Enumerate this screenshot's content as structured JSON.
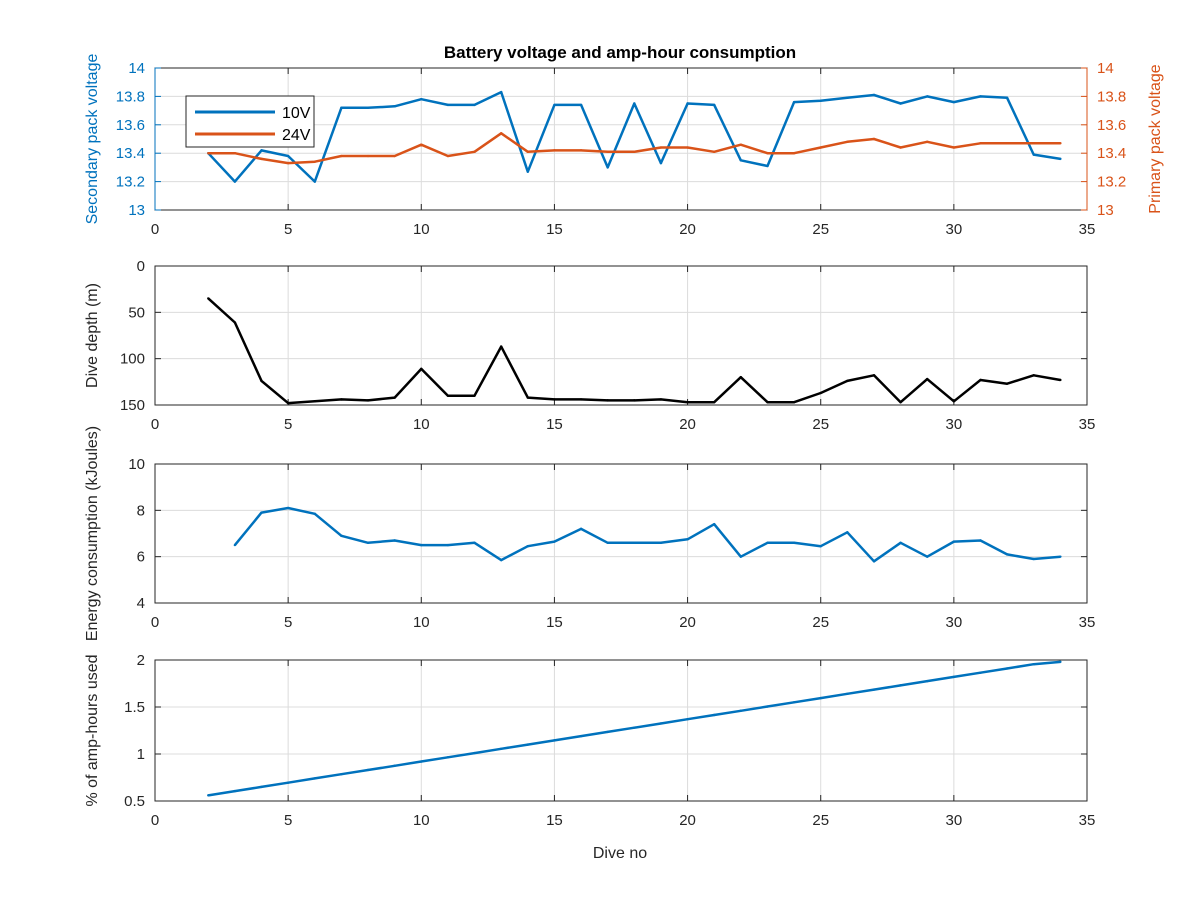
{
  "figure": {
    "title": "Battery voltage and amp-hour consumption",
    "xlabel": "Dive no"
  },
  "colors": {
    "blue": "#0072BD",
    "orange": "#D95319",
    "black": "#000000",
    "grid": "#dcdcdc",
    "axis": "#262626"
  },
  "chart_data": [
    {
      "type": "line",
      "id": "voltage",
      "title": "Battery voltage and amp-hour consumption",
      "xlabel": "",
      "ylabel": "Secondary pack voltage",
      "ylabel_right": "Primary pack voltage",
      "xlim": [
        0,
        35
      ],
      "ylim": [
        13,
        14
      ],
      "ylim_right": [
        13,
        14
      ],
      "xticks": [
        0,
        5,
        10,
        15,
        20,
        25,
        30,
        35
      ],
      "yticks": [
        13,
        13.2,
        13.4,
        13.6,
        13.8,
        14
      ],
      "ytick_labels": [
        "13",
        "13.2",
        "13.4",
        "13.6",
        "13.8",
        "14"
      ],
      "yticks_right": [
        13,
        13.2,
        13.4,
        13.6,
        13.8,
        14
      ],
      "ytick_labels_right": [
        "13",
        "13.2",
        "13.4",
        "13.6",
        "13.8",
        "14"
      ],
      "grid": true,
      "legend": "top-left",
      "x": [
        2,
        3,
        4,
        5,
        6,
        7,
        8,
        9,
        10,
        11,
        12,
        13,
        14,
        15,
        16,
        17,
        18,
        19,
        20,
        21,
        22,
        23,
        24,
        25,
        26,
        27,
        28,
        29,
        30,
        31,
        32,
        33,
        34
      ],
      "series": [
        {
          "name": "10V",
          "axis": "left",
          "color": "#0072BD",
          "values": [
            13.4,
            13.2,
            13.42,
            13.38,
            13.2,
            13.72,
            13.72,
            13.73,
            13.78,
            13.74,
            13.74,
            13.83,
            13.27,
            13.74,
            13.74,
            13.3,
            13.75,
            13.33,
            13.75,
            13.74,
            13.35,
            13.31,
            13.76,
            13.77,
            13.79,
            13.81,
            13.75,
            13.8,
            13.76,
            13.8,
            13.79,
            13.39,
            13.36
          ]
        },
        {
          "name": "24V",
          "axis": "right",
          "color": "#D95319",
          "values": [
            13.4,
            13.4,
            13.36,
            13.33,
            13.34,
            13.38,
            13.38,
            13.38,
            13.46,
            13.38,
            13.41,
            13.54,
            13.41,
            13.42,
            13.42,
            13.41,
            13.41,
            13.44,
            13.44,
            13.41,
            13.46,
            13.4,
            13.4,
            13.44,
            13.48,
            13.5,
            13.44,
            13.48,
            13.44,
            13.47,
            13.47,
            13.47,
            13.47
          ]
        }
      ]
    },
    {
      "type": "line",
      "id": "depth",
      "title": "",
      "xlabel": "",
      "ylabel": "Dive depth (m)",
      "xlim": [
        0,
        35
      ],
      "ylim": [
        0,
        150
      ],
      "y_reversed": true,
      "xticks": [
        0,
        5,
        10,
        15,
        20,
        25,
        30,
        35
      ],
      "yticks": [
        0,
        50,
        100,
        150
      ],
      "ytick_labels": [
        "0",
        "50",
        "100",
        "150"
      ],
      "grid": true,
      "x": [
        2,
        3,
        4,
        5,
        6,
        7,
        8,
        9,
        10,
        11,
        12,
        13,
        14,
        15,
        16,
        17,
        18,
        19,
        20,
        21,
        22,
        23,
        24,
        25,
        26,
        27,
        28,
        29,
        30,
        31,
        32,
        33,
        34
      ],
      "series": [
        {
          "color": "#000000",
          "values": [
            35,
            61,
            124,
            148,
            146,
            144,
            145,
            142,
            111,
            140,
            140,
            87,
            142,
            144,
            144,
            145,
            145,
            144,
            147,
            147,
            120,
            147,
            147,
            137,
            124,
            118,
            147,
            122,
            146,
            123,
            127,
            118,
            123
          ]
        }
      ]
    },
    {
      "type": "line",
      "id": "energy",
      "title": "",
      "xlabel": "",
      "ylabel": "Energy consumption (kJoules)",
      "xlim": [
        0,
        35
      ],
      "ylim": [
        4,
        10
      ],
      "xticks": [
        0,
        5,
        10,
        15,
        20,
        25,
        30,
        35
      ],
      "yticks": [
        4,
        6,
        8,
        10
      ],
      "ytick_labels": [
        "4",
        "6",
        "8",
        "10"
      ],
      "grid": true,
      "x": [
        3,
        4,
        5,
        6,
        7,
        8,
        9,
        10,
        11,
        12,
        13,
        14,
        15,
        16,
        17,
        18,
        19,
        20,
        21,
        22,
        23,
        24,
        25,
        26,
        27,
        28,
        29,
        30,
        31,
        32,
        33,
        34
      ],
      "series": [
        {
          "color": "#0072BD",
          "values": [
            6.5,
            7.9,
            8.1,
            7.85,
            6.9,
            6.6,
            6.7,
            6.5,
            6.5,
            6.6,
            5.85,
            6.45,
            6.65,
            7.2,
            6.6,
            6.6,
            6.6,
            6.75,
            7.4,
            6.0,
            6.6,
            6.6,
            6.45,
            7.05,
            5.8,
            6.6,
            6.0,
            6.65,
            6.7,
            6.1,
            5.9,
            6.0
          ]
        }
      ]
    },
    {
      "type": "line",
      "id": "amphours",
      "title": "",
      "xlabel": "Dive no",
      "ylabel": "% of amp-hours used",
      "xlim": [
        0,
        35
      ],
      "ylim": [
        0.5,
        2
      ],
      "xticks": [
        0,
        5,
        10,
        15,
        20,
        25,
        30,
        35
      ],
      "yticks": [
        0.5,
        1,
        1.5,
        2
      ],
      "ytick_labels": [
        "0.5",
        "1",
        "1.5",
        "2"
      ],
      "grid": true,
      "x": [
        2,
        3,
        4,
        5,
        6,
        7,
        8,
        9,
        10,
        11,
        12,
        13,
        14,
        15,
        16,
        17,
        18,
        19,
        20,
        21,
        22,
        23,
        24,
        25,
        26,
        27,
        28,
        29,
        30,
        31,
        32,
        33,
        34
      ],
      "series": [
        {
          "color": "#0072BD",
          "values": [
            0.56,
            0.605,
            0.65,
            0.695,
            0.74,
            0.785,
            0.83,
            0.875,
            0.92,
            0.965,
            1.01,
            1.055,
            1.1,
            1.145,
            1.19,
            1.235,
            1.28,
            1.325,
            1.37,
            1.415,
            1.46,
            1.505,
            1.55,
            1.595,
            1.64,
            1.685,
            1.73,
            1.775,
            1.82,
            1.865,
            1.91,
            1.955,
            1.98
          ]
        }
      ]
    }
  ]
}
